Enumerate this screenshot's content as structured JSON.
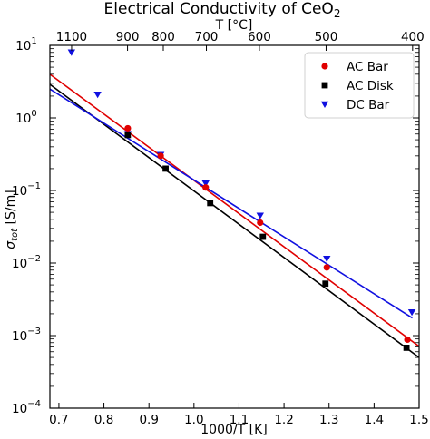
{
  "chart_data": {
    "type": "scatter",
    "title": "Electrical Conductivity of CeO",
    "title_subscript": "2",
    "xlabel": "1000/T [K]",
    "ylabel": "σ",
    "ylabel_subscript": "tot",
    "ylabel_unit": " [S/m]",
    "xlim": [
      0.68,
      1.5
    ],
    "ylim": [
      0.0001,
      10
    ],
    "yscale": "log",
    "x_ticks": [
      {
        "value": 0.7,
        "label": "0.7"
      },
      {
        "value": 0.8,
        "label": "0.8"
      },
      {
        "value": 0.9,
        "label": "0.9"
      },
      {
        "value": 1.0,
        "label": "1.0"
      },
      {
        "value": 1.1,
        "label": "1.1"
      },
      {
        "value": 1.2,
        "label": "1.2"
      },
      {
        "value": 1.3,
        "label": "1.3"
      },
      {
        "value": 1.4,
        "label": "1.4"
      },
      {
        "value": 1.5,
        "label": "1.5"
      }
    ],
    "y_ticks": [
      {
        "value": 10,
        "base": "10",
        "exp": "1"
      },
      {
        "value": 1,
        "base": "10",
        "exp": "0"
      },
      {
        "value": 0.1,
        "base": "10",
        "exp": "−1"
      },
      {
        "value": 0.01,
        "base": "10",
        "exp": "−2"
      },
      {
        "value": 0.001,
        "base": "10",
        "exp": "−3"
      },
      {
        "value": 0.0001,
        "base": "10",
        "exp": "−4"
      }
    ],
    "top_axis": {
      "label": "T [°C]",
      "ticks": [
        {
          "value": 1100,
          "label": "1100"
        },
        {
          "value": 900,
          "label": "900"
        },
        {
          "value": 800,
          "label": "800"
        },
        {
          "value": 700,
          "label": "700"
        },
        {
          "value": 600,
          "label": "600"
        },
        {
          "value": 500,
          "label": "500"
        },
        {
          "value": 400,
          "label": "400"
        }
      ]
    },
    "grid": false,
    "legend_position": "top-right",
    "series": [
      {
        "name": "AC Bar",
        "color": "#e00000",
        "marker": "circle",
        "x": [
          0.853,
          0.926,
          1.026,
          1.147,
          1.295,
          1.474
        ],
        "y": [
          0.72,
          0.3,
          0.11,
          0.036,
          0.0087,
          0.00088
        ],
        "fit": {
          "x": [
            0.68,
            1.5
          ],
          "y": [
            4.0,
            0.00071
          ]
        }
      },
      {
        "name": "AC Disk",
        "color": "#000000",
        "marker": "square",
        "x": [
          0.853,
          0.937,
          1.036,
          1.153,
          1.292,
          1.472
        ],
        "y": [
          0.58,
          0.2,
          0.067,
          0.023,
          0.0052,
          0.00068
        ],
        "fit": {
          "x": [
            0.68,
            1.5
          ],
          "y": [
            2.9,
            0.0005
          ]
        }
      },
      {
        "name": "DC Bar",
        "color": "#1010e0",
        "marker": "triangle-down",
        "x": [
          0.728,
          0.786,
          0.853,
          0.926,
          1.026,
          1.147,
          1.295,
          1.484
        ],
        "y": [
          8.0,
          2.1,
          0.6,
          0.31,
          0.125,
          0.045,
          0.0115,
          0.0021
        ],
        "fit": {
          "x": [
            0.68,
            1.485
          ],
          "y": [
            2.5,
            0.00175
          ]
        }
      }
    ]
  }
}
